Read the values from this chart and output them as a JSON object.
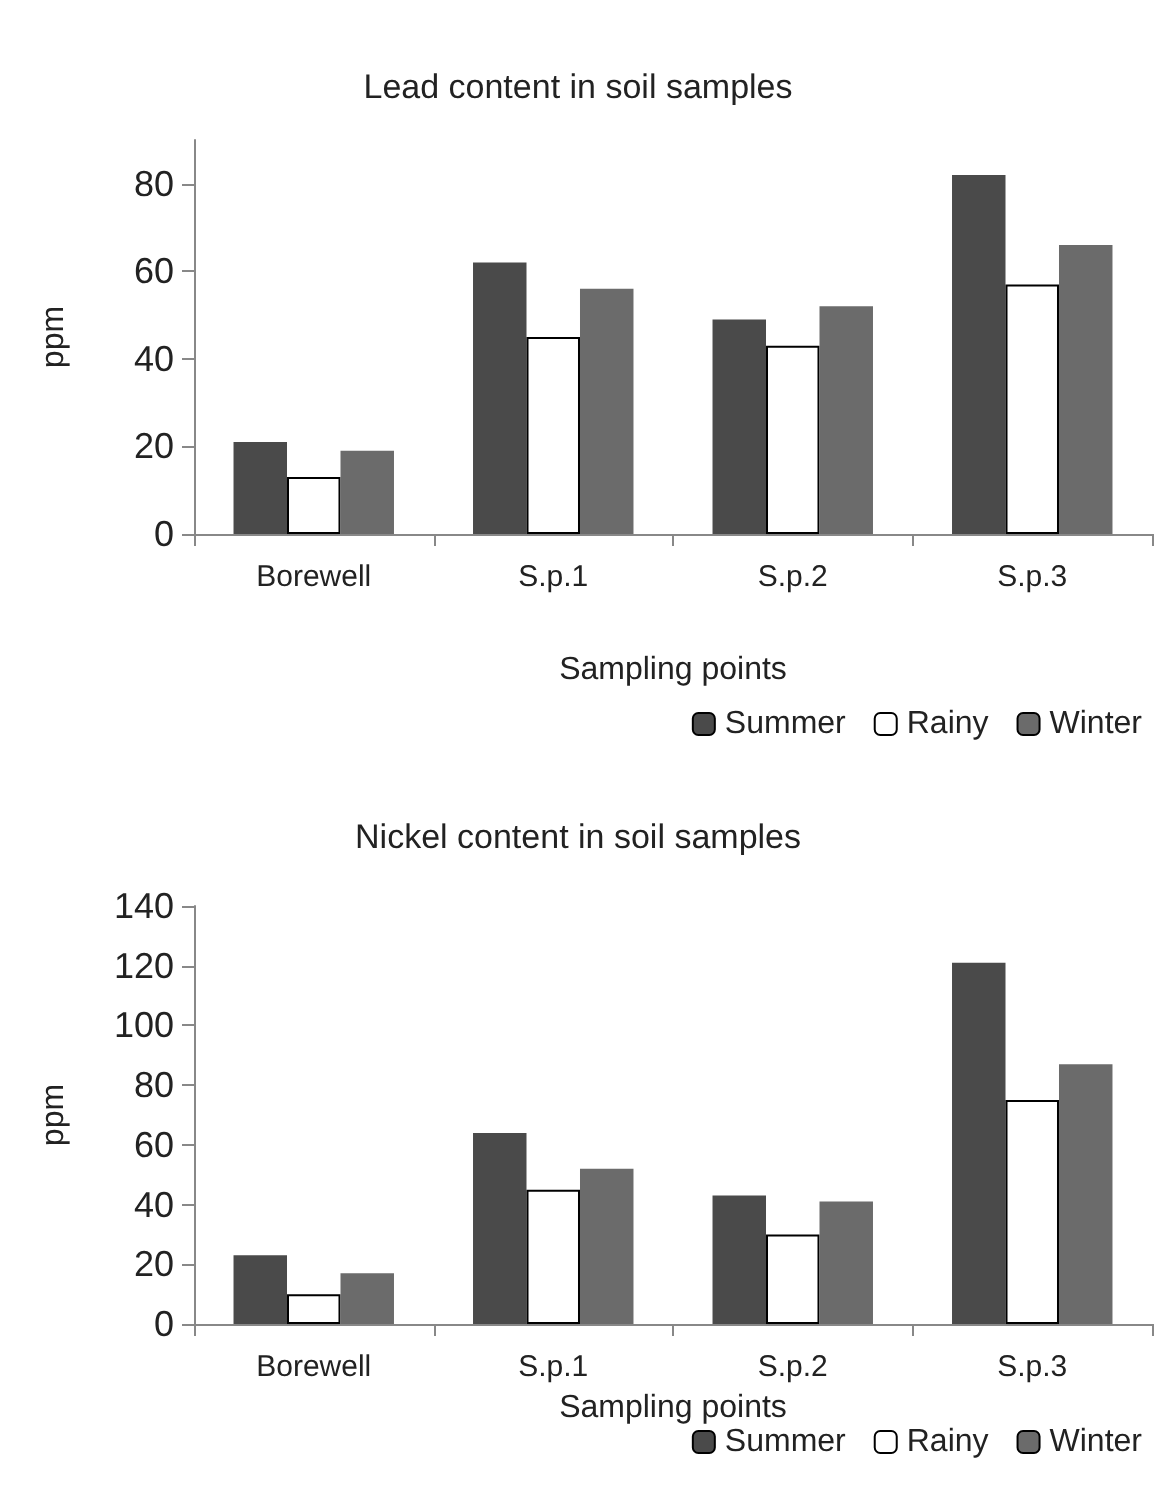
{
  "chart_data": [
    {
      "type": "bar",
      "title": "Lead content in soil samples",
      "xlabel": "Sampling points",
      "ylabel": "ppm",
      "categories": [
        "Borewell",
        "S.p.1",
        "S.p.2",
        "S.p.3"
      ],
      "ylim": [
        0,
        90
      ],
      "yticks": [
        0,
        20,
        40,
        60,
        80
      ],
      "grid": false,
      "legend": "bottom right",
      "series": [
        {
          "name": "Summer",
          "color": "#4a4a4a",
          "values": [
            21,
            62,
            49,
            82
          ]
        },
        {
          "name": "Rainy",
          "color": "#ffffff",
          "values": [
            13,
            45,
            43,
            57
          ]
        },
        {
          "name": "Winter",
          "color": "#6b6b6b",
          "values": [
            19,
            56,
            52,
            66
          ]
        }
      ]
    },
    {
      "type": "bar",
      "title": "Nickel content in soil samples",
      "xlabel": "Sampling points",
      "ylabel": "ppm",
      "categories": [
        "Borewell",
        "S.p.1",
        "S.p.2",
        "S.p.3"
      ],
      "ylim": [
        0,
        140
      ],
      "yticks": [
        0,
        20,
        40,
        60,
        80,
        100,
        120,
        140
      ],
      "grid": false,
      "legend": "bottom right",
      "series": [
        {
          "name": "Summer",
          "color": "#4a4a4a",
          "values": [
            23,
            64,
            43,
            121
          ]
        },
        {
          "name": "Rainy",
          "color": "#ffffff",
          "values": [
            10,
            45,
            30,
            75
          ]
        },
        {
          "name": "Winter",
          "color": "#6b6b6b",
          "values": [
            17,
            52,
            41,
            87
          ]
        }
      ]
    }
  ]
}
